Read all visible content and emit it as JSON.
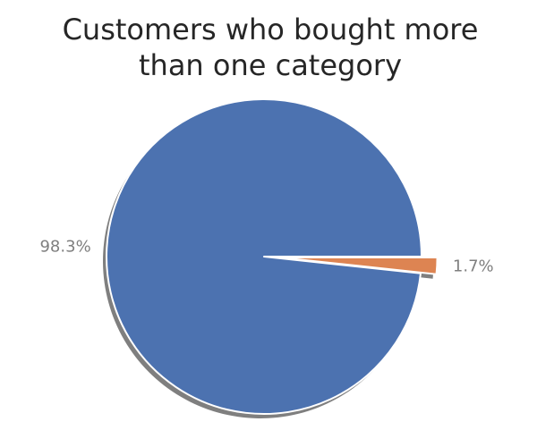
{
  "chart_data": {
    "type": "pie",
    "title": "Customers who bought more than one category",
    "title_lines": [
      "Customers who bought more",
      "than one category"
    ],
    "labels": [
      "",
      ""
    ],
    "values": [
      98.3,
      1.7
    ],
    "value_labels": [
      "98.3%",
      "1.7%"
    ],
    "colors": [
      "#4c72b0",
      "#dd8452"
    ],
    "explode": [
      0,
      0.1
    ],
    "shadow": true,
    "legend": "none"
  }
}
